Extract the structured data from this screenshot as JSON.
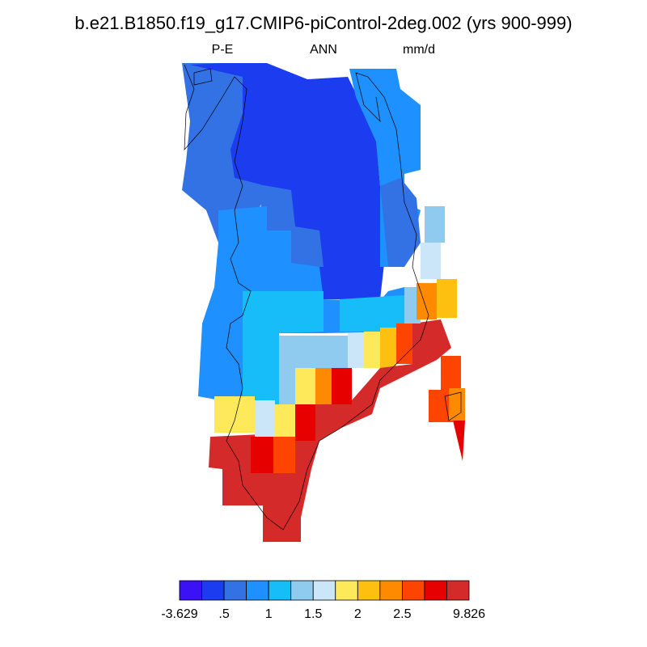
{
  "title": "b.e21.B1850.f19_g17.CMIP6-piControl-2deg.002 (yrs 900-999)",
  "left_label": "P-E",
  "center_label": "ANN",
  "right_label": "mm/d",
  "colorbar": {
    "colors": [
      "#3a12f5",
      "#1c3cf0",
      "#3272e4",
      "#1e90ff",
      "#16bdf8",
      "#8ecbef",
      "#cae6f8",
      "#fde95a",
      "#fdc010",
      "#fd8a00",
      "#fd4400",
      "#e60000",
      "#d42a2a"
    ],
    "labels": [
      "-3.629",
      ".5",
      "1",
      "1.5",
      "2",
      "2.5",
      "9.826"
    ]
  }
}
